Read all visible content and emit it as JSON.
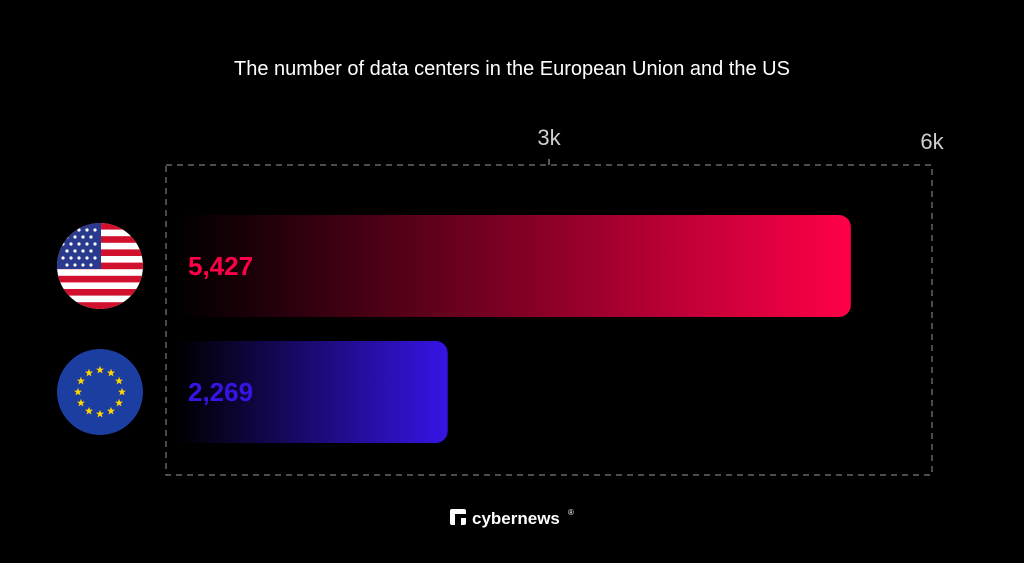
{
  "chart_data": {
    "type": "bar",
    "orientation": "horizontal",
    "title": "The number of data centers in the European Union and the US",
    "categories": [
      "United States",
      "European Union"
    ],
    "values": [
      5427,
      2269
    ],
    "value_labels": [
      "5,427",
      "2,269"
    ],
    "xlim": [
      0,
      6000
    ],
    "ticks": [
      {
        "value": 3000,
        "label": "3k"
      },
      {
        "value": 6000,
        "label": "6k"
      }
    ],
    "grid": false,
    "legend": "none",
    "category_icons": [
      "us-flag-icon",
      "eu-flag-icon"
    ],
    "colors": [
      "#ff0048",
      "#3714e6"
    ]
  },
  "brand": {
    "name": "cybernews",
    "mark": "®",
    "icon": "cybernews-logo-icon"
  }
}
